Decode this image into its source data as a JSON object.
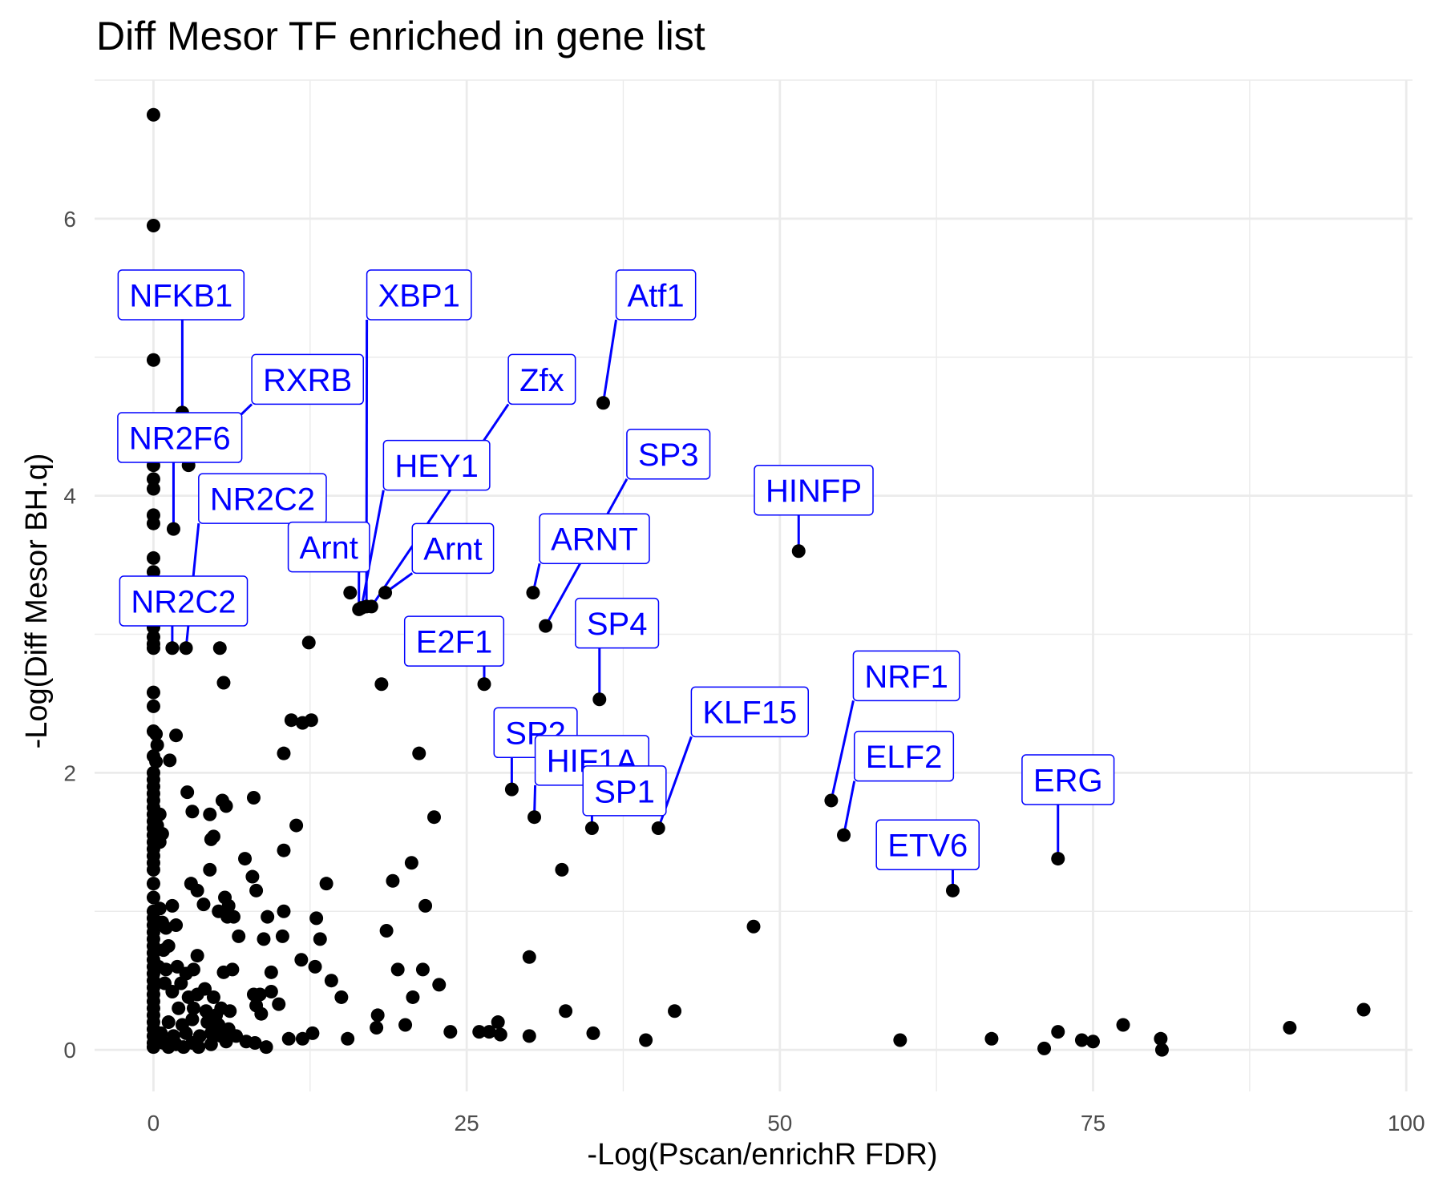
{
  "chart_data": {
    "type": "scatter",
    "title": "Diff Mesor TF enriched in gene list",
    "xlabel": "-Log(Pscan/enrichR FDR)",
    "ylabel": "-Log(Diff Mesor BH.q)",
    "xlim": [
      -4.7,
      100.5
    ],
    "ylim": [
      -0.3,
      7.0
    ],
    "x_ticks": [
      0,
      25,
      50,
      75,
      100
    ],
    "x_tick_labels": [
      "0",
      "25",
      "50",
      "75",
      "100"
    ],
    "y_ticks": [
      0,
      2,
      4,
      6
    ],
    "y_tick_labels": [
      "0",
      "2",
      "4",
      "6"
    ],
    "grid": true,
    "legend": "none",
    "labeled_points": [
      {
        "label": "NFKB1",
        "x": 2.3,
        "y": 4.6,
        "lx": 2.2,
        "ly": 5.45
      },
      {
        "label": "XBP1",
        "x": 17.0,
        "y": 3.2,
        "lx": 21.2,
        "ly": 5.45
      },
      {
        "label": "Atf1",
        "x": 35.9,
        "y": 4.67,
        "lx": 40.1,
        "ly": 5.45
      },
      {
        "label": "RXRB",
        "x": 2.8,
        "y": 4.22,
        "lx": 12.3,
        "ly": 4.84
      },
      {
        "label": "Zfx",
        "x": 17.4,
        "y": 3.2,
        "lx": 31.0,
        "ly": 4.84
      },
      {
        "label": "NR2F6",
        "x": 1.6,
        "y": 3.76,
        "lx": 2.1,
        "ly": 4.42
      },
      {
        "label": "HEY1",
        "x": 16.6,
        "y": 3.19,
        "lx": 22.6,
        "ly": 4.22
      },
      {
        "label": "SP3",
        "x": 31.3,
        "y": 3.06,
        "lx": 41.1,
        "ly": 4.3
      },
      {
        "label": "HINFP",
        "x": 51.5,
        "y": 3.6,
        "lx": 52.7,
        "ly": 4.04
      },
      {
        "label": "NR2C2",
        "x": 2.6,
        "y": 2.9,
        "lx": 8.7,
        "ly": 3.98
      },
      {
        "label": "Arnt",
        "x": 16.4,
        "y": 3.18,
        "lx": 14.0,
        "ly": 3.63
      },
      {
        "label": "Arnt",
        "x": 18.5,
        "y": 3.3,
        "lx": 23.9,
        "ly": 3.62
      },
      {
        "label": "ARNT",
        "x": 30.3,
        "y": 3.3,
        "lx": 35.2,
        "ly": 3.69
      },
      {
        "label": "NR2C2",
        "x": 1.5,
        "y": 2.9,
        "lx": 2.4,
        "ly": 3.24
      },
      {
        "label": "SP4",
        "x": 35.6,
        "y": 2.53,
        "lx": 37.0,
        "ly": 3.08
      },
      {
        "label": "E2F1",
        "x": 26.4,
        "y": 2.64,
        "lx": 24.0,
        "ly": 2.95
      },
      {
        "label": "NRF1",
        "x": 54.1,
        "y": 1.8,
        "lx": 60.1,
        "ly": 2.7
      },
      {
        "label": "KLF15",
        "x": 40.3,
        "y": 1.6,
        "lx": 47.6,
        "ly": 2.44
      },
      {
        "label": "SP2",
        "x": 28.6,
        "y": 1.88,
        "lx": 30.5,
        "ly": 2.29
      },
      {
        "label": "HIF1A",
        "x": 30.4,
        "y": 1.68,
        "lx": 35.0,
        "ly": 2.09
      },
      {
        "label": "ELF2",
        "x": 55.1,
        "y": 1.55,
        "lx": 59.9,
        "ly": 2.12
      },
      {
        "label": "ERG",
        "x": 72.2,
        "y": 1.38,
        "lx": 73.0,
        "ly": 1.95
      },
      {
        "label": "SP1",
        "x": 35.0,
        "y": 1.6,
        "lx": 37.6,
        "ly": 1.87
      },
      {
        "label": "ETV6",
        "x": 63.8,
        "y": 1.15,
        "lx": 61.8,
        "ly": 1.48
      }
    ],
    "points": [
      [
        0,
        6.75
      ],
      [
        0,
        5.95
      ],
      [
        0,
        4.98
      ],
      [
        2.3,
        4.6
      ],
      [
        2.8,
        4.22
      ],
      [
        1.6,
        3.76
      ],
      [
        0,
        4.55
      ],
      [
        0,
        4.38
      ],
      [
        0,
        4.22
      ],
      [
        0,
        4.12
      ],
      [
        0,
        4.05
      ],
      [
        0,
        3.86
      ],
      [
        0,
        3.8
      ],
      [
        0,
        3.55
      ],
      [
        0,
        3.45
      ],
      [
        0,
        3.32
      ],
      [
        0,
        3.2
      ],
      [
        0,
        3.12
      ],
      [
        0,
        3.05
      ],
      [
        0,
        2.98
      ],
      [
        0,
        2.93
      ],
      [
        0,
        2.9
      ],
      [
        1.5,
        2.9
      ],
      [
        2.6,
        2.9
      ],
      [
        5.3,
        2.9
      ],
      [
        5.6,
        2.65
      ],
      [
        12.4,
        2.94
      ],
      [
        18.2,
        2.64
      ],
      [
        15.7,
        3.3
      ],
      [
        16.4,
        3.18
      ],
      [
        16.6,
        3.19
      ],
      [
        17.0,
        3.2
      ],
      [
        17.4,
        3.2
      ],
      [
        18.5,
        3.3
      ],
      [
        30.3,
        3.3
      ],
      [
        31.3,
        3.06
      ],
      [
        35.9,
        4.67
      ],
      [
        51.5,
        3.6
      ],
      [
        26.4,
        2.64
      ],
      [
        35.6,
        2.53
      ],
      [
        0,
        2.58
      ],
      [
        0,
        2.48
      ],
      [
        0,
        2.3
      ],
      [
        0.2,
        2.28
      ],
      [
        0.3,
        2.2
      ],
      [
        1.8,
        2.27
      ],
      [
        0,
        2.12
      ],
      [
        0.2,
        2.08
      ],
      [
        1.3,
        2.09
      ],
      [
        0,
        2.0
      ],
      [
        0,
        1.95
      ],
      [
        0,
        1.9
      ],
      [
        0,
        1.85
      ],
      [
        0,
        1.8
      ],
      [
        0,
        1.75
      ],
      [
        0,
        1.7
      ],
      [
        0,
        1.65
      ],
      [
        0,
        1.6
      ],
      [
        0,
        1.55
      ],
      [
        0,
        1.5
      ],
      [
        0,
        1.45
      ],
      [
        0,
        1.4
      ],
      [
        0.3,
        1.62
      ],
      [
        0.5,
        1.7
      ],
      [
        0.5,
        1.5
      ],
      [
        0.3,
        1.52
      ],
      [
        0.7,
        1.56
      ],
      [
        2.7,
        1.86
      ],
      [
        3.1,
        1.72
      ],
      [
        4.5,
        1.7
      ],
      [
        4.6,
        1.52
      ],
      [
        4.8,
        1.54
      ],
      [
        5.5,
        1.8
      ],
      [
        5.8,
        1.76
      ],
      [
        8.0,
        1.82
      ],
      [
        10.4,
        2.14
      ],
      [
        11.0,
        2.38
      ],
      [
        11.9,
        2.36
      ],
      [
        12.6,
        2.38
      ],
      [
        21.2,
        2.14
      ],
      [
        22.4,
        1.68
      ],
      [
        28.6,
        1.88
      ],
      [
        30.4,
        1.68
      ],
      [
        35.0,
        1.6
      ],
      [
        54.1,
        1.8
      ],
      [
        55.1,
        1.55
      ],
      [
        72.2,
        1.38
      ],
      [
        63.8,
        1.15
      ],
      [
        40.3,
        1.6
      ],
      [
        0,
        1.35
      ],
      [
        0,
        1.3
      ],
      [
        0,
        1.2
      ],
      [
        0,
        1.1
      ],
      [
        0,
        1.0
      ],
      [
        0,
        0.95
      ],
      [
        0,
        0.9
      ],
      [
        0,
        0.85
      ],
      [
        0,
        0.8
      ],
      [
        0,
        0.75
      ],
      [
        0,
        0.7
      ],
      [
        0,
        0.65
      ],
      [
        0,
        0.6
      ],
      [
        0,
        0.55
      ],
      [
        0,
        0.5
      ],
      [
        0,
        0.45
      ],
      [
        0,
        0.4
      ],
      [
        0,
        0.35
      ],
      [
        0,
        0.3
      ],
      [
        0,
        0.25
      ],
      [
        0,
        0.2
      ],
      [
        0,
        0.15
      ],
      [
        0,
        0.1
      ],
      [
        0,
        0.05
      ],
      [
        0,
        0.02
      ],
      [
        0.5,
        1.02
      ],
      [
        0.7,
        0.92
      ],
      [
        1.0,
        0.88
      ],
      [
        1.5,
        1.04
      ],
      [
        1.8,
        0.9
      ],
      [
        1.2,
        0.75
      ],
      [
        0.8,
        0.72
      ],
      [
        0.4,
        0.6
      ],
      [
        1.0,
        0.58
      ],
      [
        1.9,
        0.6
      ],
      [
        2.6,
        0.55
      ],
      [
        3.2,
        0.58
      ],
      [
        3.5,
        0.68
      ],
      [
        2.2,
        0.48
      ],
      [
        0.9,
        0.48
      ],
      [
        1.5,
        0.42
      ],
      [
        2.8,
        0.38
      ],
      [
        3.5,
        0.4
      ],
      [
        4.1,
        0.44
      ],
      [
        4.8,
        0.38
      ],
      [
        5.6,
        0.56
      ],
      [
        6.3,
        0.58
      ],
      [
        2.0,
        0.3
      ],
      [
        3.2,
        0.3
      ],
      [
        4.2,
        0.28
      ],
      [
        5.0,
        0.25
      ],
      [
        5.4,
        0.3
      ],
      [
        6.1,
        0.28
      ],
      [
        1.2,
        0.2
      ],
      [
        2.3,
        0.18
      ],
      [
        3.1,
        0.22
      ],
      [
        4.3,
        0.2
      ],
      [
        5.2,
        0.18
      ],
      [
        6.0,
        0.15
      ],
      [
        0.6,
        0.12
      ],
      [
        1.6,
        0.1
      ],
      [
        2.6,
        0.12
      ],
      [
        3.7,
        0.1
      ],
      [
        4.6,
        0.12
      ],
      [
        5.4,
        0.1
      ],
      [
        0.8,
        0.05
      ],
      [
        1.8,
        0.04
      ],
      [
        3.1,
        0.05
      ],
      [
        4.6,
        0.04
      ],
      [
        5.8,
        0.06
      ],
      [
        7.4,
        0.06
      ],
      [
        8.1,
        0.05
      ],
      [
        1.2,
        0.02
      ],
      [
        2.4,
        0.02
      ],
      [
        3.6,
        0.02
      ],
      [
        4.5,
        1.3
      ],
      [
        3.0,
        1.2
      ],
      [
        3.5,
        1.15
      ],
      [
        4.0,
        1.05
      ],
      [
        5.2,
        1.0
      ],
      [
        5.7,
        1.1
      ],
      [
        6.0,
        1.04
      ],
      [
        7.3,
        1.38
      ],
      [
        7.9,
        1.25
      ],
      [
        8.2,
        1.15
      ],
      [
        5.9,
        0.96
      ],
      [
        6.4,
        0.96
      ],
      [
        6.8,
        0.82
      ],
      [
        8.8,
        0.8
      ],
      [
        9.1,
        0.96
      ],
      [
        10.3,
        0.82
      ],
      [
        10.4,
        1.0
      ],
      [
        10.4,
        1.44
      ],
      [
        11.4,
        1.62
      ],
      [
        11.8,
        0.65
      ],
      [
        13.0,
        0.95
      ],
      [
        13.3,
        0.8
      ],
      [
        13.8,
        1.2
      ],
      [
        12.9,
        0.6
      ],
      [
        14.2,
        0.5
      ],
      [
        15.0,
        0.38
      ],
      [
        17.9,
        0.25
      ],
      [
        17.8,
        0.16
      ],
      [
        18.6,
        0.86
      ],
      [
        19.1,
        1.22
      ],
      [
        20.6,
        1.35
      ],
      [
        21.7,
        1.04
      ],
      [
        20.7,
        0.38
      ],
      [
        21.5,
        0.58
      ],
      [
        22.8,
        0.47
      ],
      [
        19.5,
        0.58
      ],
      [
        20.1,
        0.18
      ],
      [
        23.7,
        0.13
      ],
      [
        26.0,
        0.13
      ],
      [
        26.8,
        0.13
      ],
      [
        27.5,
        0.2
      ],
      [
        27.7,
        0.11
      ],
      [
        30.0,
        0.1
      ],
      [
        30.0,
        0.67
      ],
      [
        32.6,
        1.3
      ],
      [
        32.9,
        0.28
      ],
      [
        35.1,
        0.12
      ],
      [
        39.3,
        0.07
      ],
      [
        41.6,
        0.28
      ],
      [
        47.9,
        0.89
      ],
      [
        59.6,
        0.07
      ],
      [
        66.9,
        0.08
      ],
      [
        71.1,
        0.01
      ],
      [
        72.2,
        0.13
      ],
      [
        74.1,
        0.07
      ],
      [
        75.0,
        0.06
      ],
      [
        77.4,
        0.18
      ],
      [
        80.4,
        0.08
      ],
      [
        80.5,
        0.0
      ],
      [
        90.7,
        0.16
      ],
      [
        96.6,
        0.29
      ],
      [
        8.5,
        0.4
      ],
      [
        8.0,
        0.4
      ],
      [
        8.2,
        0.32
      ],
      [
        8.6,
        0.26
      ],
      [
        9.4,
        0.42
      ],
      [
        10.0,
        0.33
      ],
      [
        9.4,
        0.56
      ],
      [
        10.8,
        0.08
      ],
      [
        11.9,
        0.08
      ],
      [
        12.7,
        0.12
      ],
      [
        15.5,
        0.08
      ],
      [
        9.0,
        0.02
      ],
      [
        6.6,
        0.1
      ]
    ]
  }
}
